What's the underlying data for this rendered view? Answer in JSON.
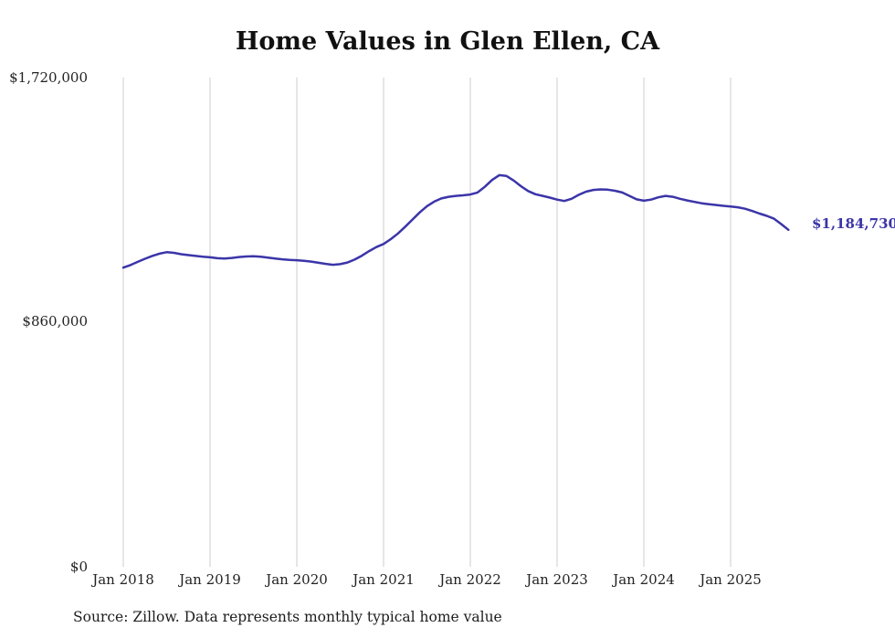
{
  "title": "Home Values in Glen Ellen, CA",
  "source_note": "Source: Zillow. Data represents monthly typical home value",
  "colors": {
    "accent": "#3b35a8",
    "gridline": "#cccccc",
    "text": "#222222"
  },
  "chart_data": {
    "type": "line",
    "title": "Home Values in Glen Ellen, CA",
    "xlabel": "",
    "ylabel": "",
    "ylim": [
      0,
      1720000
    ],
    "grid": "vertical-only",
    "legend": "none",
    "y_ticks": [
      {
        "value": 0,
        "label": "$0"
      },
      {
        "value": 860000,
        "label": "$860,000"
      },
      {
        "value": 1720000,
        "label": "$1,720,000"
      }
    ],
    "x_tick_labels": [
      "Jan 2018",
      "Jan 2019",
      "Jan 2020",
      "Jan 2021",
      "Jan 2022",
      "Jan 2023",
      "Jan 2024",
      "Jan 2025"
    ],
    "end_label": "$1,184,730",
    "series": [
      {
        "name": "Monthly typical home value",
        "dates": [
          "2018-01",
          "2018-02",
          "2018-03",
          "2018-04",
          "2018-05",
          "2018-06",
          "2018-07",
          "2018-08",
          "2018-09",
          "2018-10",
          "2018-11",
          "2018-12",
          "2019-01",
          "2019-02",
          "2019-03",
          "2019-04",
          "2019-05",
          "2019-06",
          "2019-07",
          "2019-08",
          "2019-09",
          "2019-10",
          "2019-11",
          "2019-12",
          "2020-01",
          "2020-02",
          "2020-03",
          "2020-04",
          "2020-05",
          "2020-06",
          "2020-07",
          "2020-08",
          "2020-09",
          "2020-10",
          "2020-11",
          "2020-12",
          "2021-01",
          "2021-02",
          "2021-03",
          "2021-04",
          "2021-05",
          "2021-06",
          "2021-07",
          "2021-08",
          "2021-09",
          "2021-10",
          "2021-11",
          "2021-12",
          "2022-01",
          "2022-02",
          "2022-03",
          "2022-04",
          "2022-05",
          "2022-06",
          "2022-07",
          "2022-08",
          "2022-09",
          "2022-10",
          "2022-11",
          "2022-12",
          "2023-01",
          "2023-02",
          "2023-03",
          "2023-04",
          "2023-05",
          "2023-06",
          "2023-07",
          "2023-08",
          "2023-09",
          "2023-10",
          "2023-11",
          "2023-12",
          "2024-01",
          "2024-02",
          "2024-03",
          "2024-04",
          "2024-05",
          "2024-06",
          "2024-07",
          "2024-08",
          "2024-09",
          "2024-10",
          "2024-11",
          "2024-12",
          "2025-01",
          "2025-02",
          "2025-03",
          "2025-04",
          "2025-05",
          "2025-06",
          "2025-07",
          "2025-08",
          "2025-09"
        ],
        "values": [
          1052000,
          1061000,
          1072000,
          1083000,
          1093000,
          1101000,
          1106000,
          1104000,
          1099000,
          1096000,
          1093000,
          1090000,
          1088000,
          1085000,
          1084000,
          1086000,
          1089000,
          1091000,
          1092000,
          1090000,
          1087000,
          1084000,
          1081000,
          1079000,
          1078000,
          1076000,
          1073000,
          1069000,
          1065000,
          1062000,
          1064000,
          1070000,
          1080000,
          1094000,
          1110000,
          1124000,
          1135000,
          1152000,
          1172000,
          1196000,
          1221000,
          1246000,
          1268000,
          1284000,
          1295000,
          1301000,
          1304000,
          1306000,
          1309000,
          1316000,
          1336000,
          1360000,
          1377000,
          1374000,
          1358000,
          1338000,
          1321000,
          1310000,
          1304000,
          1298000,
          1291000,
          1286000,
          1294000,
          1308000,
          1319000,
          1325000,
          1327000,
          1326000,
          1322000,
          1316000,
          1304000,
          1292000,
          1287000,
          1291000,
          1299000,
          1304000,
          1301000,
          1294000,
          1288000,
          1283000,
          1278000,
          1275000,
          1272000,
          1269000,
          1267000,
          1264000,
          1259000,
          1251000,
          1242000,
          1234000,
          1224000,
          1205000,
          1184730
        ]
      }
    ]
  }
}
